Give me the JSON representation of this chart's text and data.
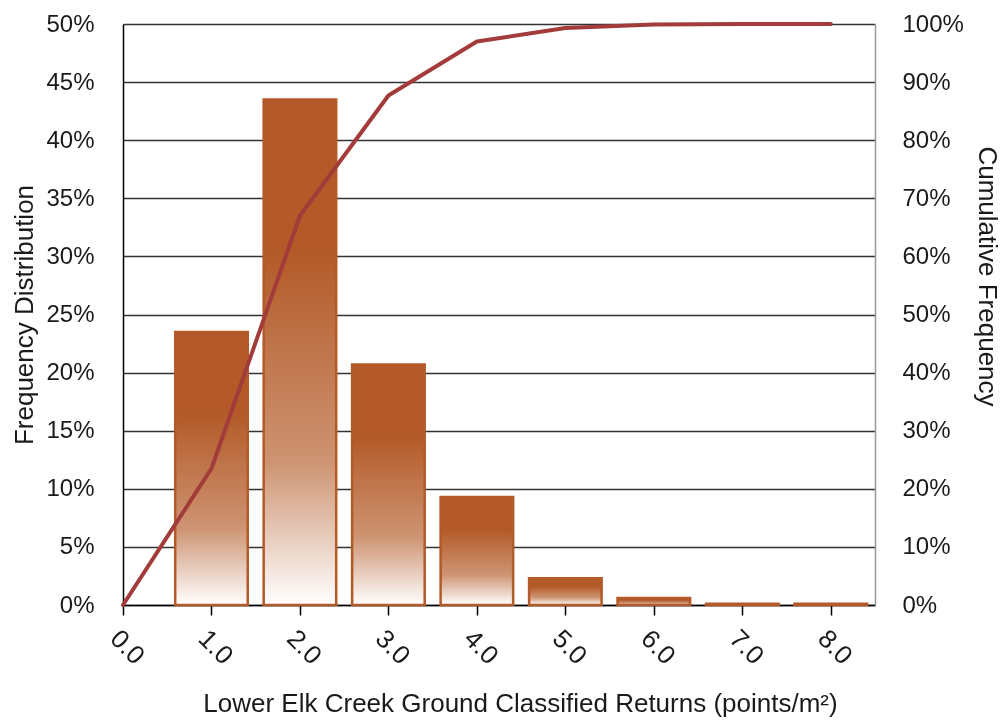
{
  "chart_data": {
    "type": "bar",
    "xlabel": "Lower Elk Creek Ground Classified Returns (points/m²)",
    "ylabel": "Frequency Distribution",
    "y2label": "Cumulative Frequency",
    "x": [
      1,
      2,
      3,
      4,
      5,
      6,
      7,
      8
    ],
    "xlim": [
      0,
      8.5
    ],
    "xticks": [
      {
        "value": 0,
        "label": "0.0"
      },
      {
        "value": 1,
        "label": "1.0"
      },
      {
        "value": 2,
        "label": "2.0"
      },
      {
        "value": 3,
        "label": "3.0"
      },
      {
        "value": 4,
        "label": "4.0"
      },
      {
        "value": 5,
        "label": "5.0"
      },
      {
        "value": 6,
        "label": "6.0"
      },
      {
        "value": 7,
        "label": "7.0"
      },
      {
        "value": 8,
        "label": "8.0"
      }
    ],
    "ylim": [
      0,
      50
    ],
    "yticks": [
      {
        "value": 0,
        "label": "0%"
      },
      {
        "value": 5,
        "label": "5%"
      },
      {
        "value": 10,
        "label": "10%"
      },
      {
        "value": 15,
        "label": "15%"
      },
      {
        "value": 20,
        "label": "20%"
      },
      {
        "value": 25,
        "label": "25%"
      },
      {
        "value": 30,
        "label": "30%"
      },
      {
        "value": 35,
        "label": "35%"
      },
      {
        "value": 40,
        "label": "40%"
      },
      {
        "value": 45,
        "label": "45%"
      },
      {
        "value": 50,
        "label": "50%"
      }
    ],
    "y2lim": [
      0,
      100
    ],
    "y2ticks": [
      {
        "value": 0,
        "label": "0%"
      },
      {
        "value": 10,
        "label": "10%"
      },
      {
        "value": 20,
        "label": "20%"
      },
      {
        "value": 30,
        "label": "30%"
      },
      {
        "value": 40,
        "label": "40%"
      },
      {
        "value": 50,
        "label": "50%"
      },
      {
        "value": 60,
        "label": "60%"
      },
      {
        "value": 70,
        "label": "70%"
      },
      {
        "value": 80,
        "label": "80%"
      },
      {
        "value": 90,
        "label": "90%"
      },
      {
        "value": 100,
        "label": "100%"
      }
    ],
    "grid": "y",
    "series": [
      {
        "color": "#b35a28",
        "values": [
          23.5,
          43.5,
          20.7,
          9.3,
          2.3,
          0.6,
          0.1,
          0.1
        ]
      },
      {
        "type": "line",
        "axis": "y2",
        "color": "#a33b3b",
        "x": [
          0,
          1,
          2,
          3,
          4,
          5,
          6,
          7,
          8
        ],
        "values": [
          0,
          23.5,
          67,
          87.7,
          97,
          99.3,
          99.9,
          100,
          100
        ]
      }
    ]
  }
}
